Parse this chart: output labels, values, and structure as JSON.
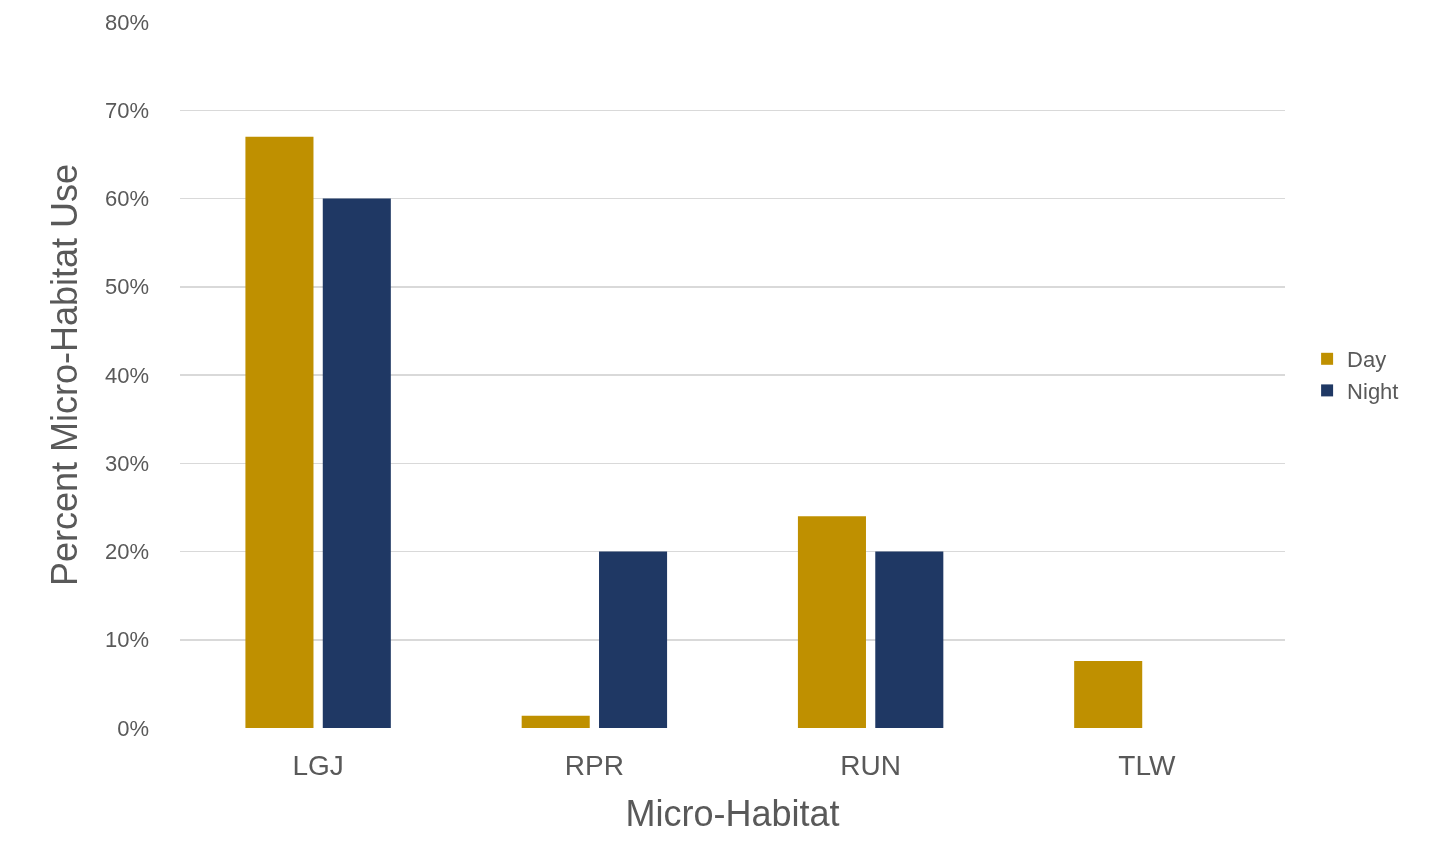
{
  "chart_data": {
    "type": "bar",
    "xlabel": "Micro-Habitat",
    "ylabel": "Percent Micro-Habitat Use",
    "categories": [
      "LGJ",
      "RPR",
      "RUN",
      "TLW"
    ],
    "series": [
      {
        "name": "Day",
        "color": "#bf9000",
        "values": [
          67,
          1.4,
          24,
          7.6
        ]
      },
      {
        "name": "Night",
        "color": "#1f3864",
        "values": [
          60,
          20,
          20,
          0
        ]
      }
    ],
    "ylim": [
      0,
      80
    ],
    "yticks": [
      {
        "value": 0,
        "label": "0%"
      },
      {
        "value": 10,
        "label": "10%"
      },
      {
        "value": 20,
        "label": "20%"
      },
      {
        "value": 30,
        "label": "30%"
      },
      {
        "value": 40,
        "label": "40%"
      },
      {
        "value": 50,
        "label": "50%"
      },
      {
        "value": 60,
        "label": "60%"
      },
      {
        "value": 70,
        "label": "70%"
      },
      {
        "value": 80,
        "label": "80%"
      }
    ],
    "grid": "y",
    "legend": "right"
  }
}
